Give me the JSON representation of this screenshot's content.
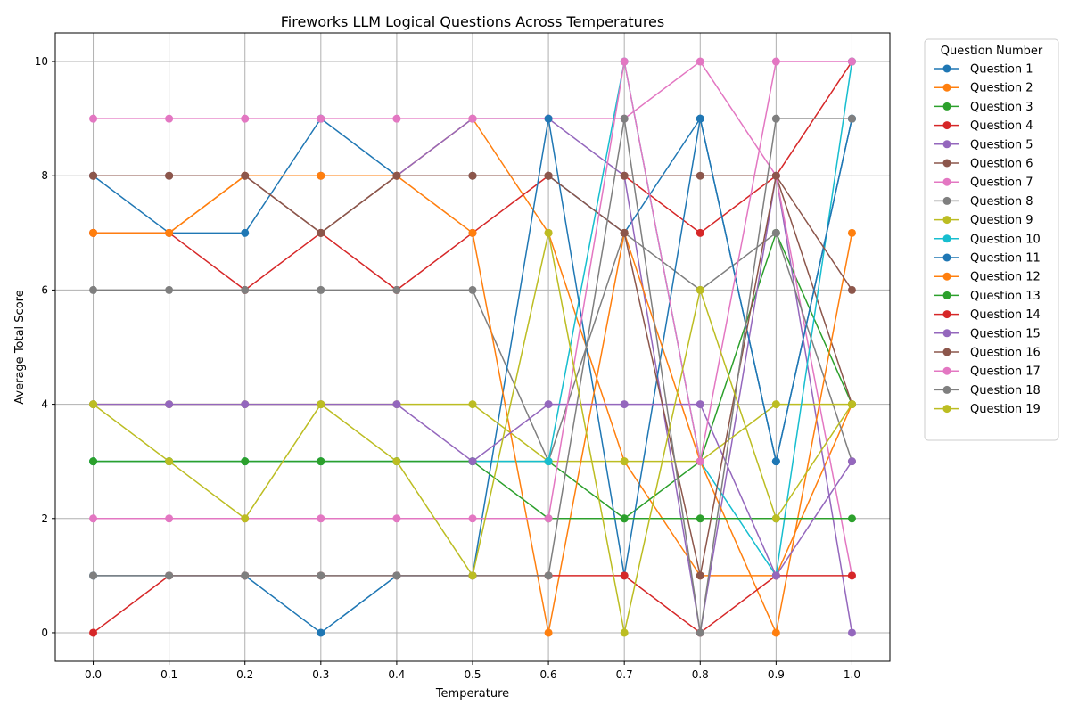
{
  "chart_data": {
    "type": "line",
    "title": "Fireworks LLM Logical Questions Across Temperatures",
    "xlabel": "Temperature",
    "ylabel": "Average Total Score",
    "x": [
      0.0,
      0.1,
      0.2,
      0.3,
      0.4,
      0.5,
      0.6,
      0.7,
      0.8,
      0.9,
      1.0
    ],
    "x_tick_labels": [
      "0.0",
      "0.1",
      "0.2",
      "0.3",
      "0.4",
      "0.5",
      "0.6",
      "0.7",
      "0.8",
      "0.9",
      "1.0"
    ],
    "xlim": [
      -0.05,
      1.05
    ],
    "ylim": [
      -0.5,
      10.5
    ],
    "y_ticks": [
      0,
      2,
      4,
      6,
      8,
      10
    ],
    "y_tick_labels": [
      "0",
      "2",
      "4",
      "6",
      "8",
      "10"
    ],
    "grid": true,
    "legend_title": "Question Number",
    "legend_position": "outside-right",
    "series": [
      {
        "name": "Question 1",
        "color": "#1f77b4",
        "values": [
          8,
          7,
          7,
          9,
          8,
          8,
          8,
          7,
          9,
          3,
          9
        ]
      },
      {
        "name": "Question 2",
        "color": "#ff7f0e",
        "values": [
          7,
          7,
          8,
          8,
          8,
          9,
          7,
          3,
          1,
          1,
          4
        ]
      },
      {
        "name": "Question 3",
        "color": "#2ca02c",
        "values": [
          3,
          3,
          3,
          3,
          3,
          3,
          3,
          2,
          3,
          7,
          4
        ]
      },
      {
        "name": "Question 4",
        "color": "#d62728",
        "values": [
          7,
          7,
          6,
          7,
          6,
          7,
          8,
          8,
          7,
          8,
          10
        ]
      },
      {
        "name": "Question 5",
        "color": "#9467bd",
        "values": [
          8,
          8,
          8,
          8,
          8,
          9,
          9,
          8,
          0,
          8,
          0
        ]
      },
      {
        "name": "Question 6",
        "color": "#8c564b",
        "values": [
          8,
          8,
          8,
          7,
          8,
          8,
          8,
          8,
          8,
          8,
          4
        ]
      },
      {
        "name": "Question 7",
        "color": "#e377c2",
        "values": [
          9,
          9,
          9,
          9,
          9,
          9,
          9,
          9,
          10,
          8,
          1
        ]
      },
      {
        "name": "Question 8",
        "color": "#7f7f7f",
        "values": [
          6,
          6,
          6,
          6,
          6,
          6,
          3,
          7,
          6,
          7,
          3
        ]
      },
      {
        "name": "Question 9",
        "color": "#bcbd22",
        "values": [
          4,
          4,
          4,
          4,
          4,
          4,
          3,
          3,
          3,
          4,
          4
        ]
      },
      {
        "name": "Question 10",
        "color": "#17becf",
        "values": [
          3,
          3,
          3,
          3,
          3,
          3,
          3,
          10,
          3,
          1,
          10
        ]
      },
      {
        "name": "Question 11",
        "color": "#1f77b4",
        "values": [
          1,
          1,
          1,
          0,
          1,
          1,
          9,
          1,
          9,
          3,
          9
        ]
      },
      {
        "name": "Question 12",
        "color": "#ff7f0e",
        "values": [
          7,
          7,
          8,
          8,
          8,
          7,
          0,
          7,
          3,
          0,
          7
        ]
      },
      {
        "name": "Question 13",
        "color": "#2ca02c",
        "values": [
          3,
          3,
          3,
          3,
          3,
          3,
          2,
          2,
          2,
          2,
          2
        ]
      },
      {
        "name": "Question 14",
        "color": "#d62728",
        "values": [
          0,
          1,
          1,
          1,
          1,
          1,
          1,
          1,
          0,
          1,
          1
        ]
      },
      {
        "name": "Question 15",
        "color": "#9467bd",
        "values": [
          4,
          4,
          4,
          4,
          4,
          3,
          4,
          4,
          4,
          1,
          3
        ]
      },
      {
        "name": "Question 16",
        "color": "#8c564b",
        "values": [
          8,
          8,
          8,
          7,
          8,
          8,
          8,
          7,
          1,
          8,
          6
        ]
      },
      {
        "name": "Question 17",
        "color": "#e377c2",
        "values": [
          2,
          2,
          2,
          2,
          2,
          2,
          2,
          10,
          3,
          10,
          10
        ]
      },
      {
        "name": "Question 18",
        "color": "#7f7f7f",
        "values": [
          1,
          1,
          1,
          1,
          1,
          1,
          1,
          9,
          0,
          9,
          9
        ]
      },
      {
        "name": "Question 19",
        "color": "#bcbd22",
        "values": [
          4,
          3,
          2,
          4,
          3,
          1,
          7,
          0,
          6,
          2,
          4
        ]
      }
    ]
  }
}
